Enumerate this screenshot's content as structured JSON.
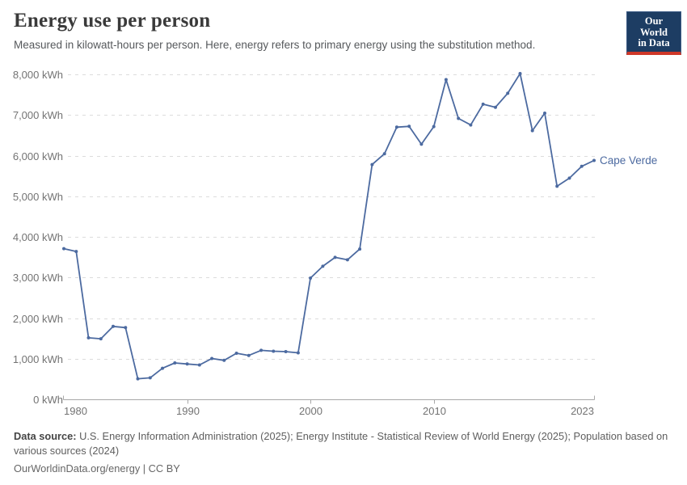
{
  "header": {
    "title": "Energy use per person",
    "subtitle": "Measured in kilowatt-hours per person. Here, energy refers to primary energy using the substitution method.",
    "logo": {
      "line1": "Our World",
      "line2": "in Data"
    }
  },
  "chart_data": {
    "type": "line",
    "title": "Energy use per person",
    "ylabel": "kilowatt-hours per person",
    "entity": "Cape Verde",
    "legend_position": "end-of-line-label",
    "grid": "horizontal-dashed",
    "xlim": [
      1980,
      2023
    ],
    "ylim": [
      0,
      8000
    ],
    "x": [
      1980,
      1981,
      1982,
      1983,
      1984,
      1985,
      1986,
      1987,
      1988,
      1989,
      1990,
      1991,
      1992,
      1993,
      1994,
      1995,
      1996,
      1997,
      1998,
      1999,
      2000,
      2001,
      2002,
      2003,
      2004,
      2005,
      2006,
      2007,
      2008,
      2009,
      2010,
      2011,
      2012,
      2013,
      2014,
      2015,
      2016,
      2017,
      2018,
      2019,
      2020,
      2021,
      2022,
      2023
    ],
    "values": [
      3710,
      3640,
      1515,
      1490,
      1795,
      1765,
      505,
      530,
      765,
      895,
      870,
      845,
      1005,
      960,
      1135,
      1080,
      1205,
      1185,
      1175,
      1145,
      2985,
      3275,
      3495,
      3435,
      3700,
      5780,
      6045,
      6700,
      6720,
      6280,
      6715,
      7870,
      6915,
      6755,
      7265,
      7190,
      7535,
      8020,
      6615,
      7045,
      5245,
      5445,
      5735,
      5880
    ],
    "y_ticks": [
      {
        "value": 0,
        "label": "0 kWh"
      },
      {
        "value": 1000,
        "label": "1,000 kWh"
      },
      {
        "value": 2000,
        "label": "2,000 kWh"
      },
      {
        "value": 3000,
        "label": "3,000 kWh"
      },
      {
        "value": 4000,
        "label": "4,000 kWh"
      },
      {
        "value": 5000,
        "label": "5,000 kWh"
      },
      {
        "value": 6000,
        "label": "6,000 kWh"
      },
      {
        "value": 7000,
        "label": "7,000 kWh"
      },
      {
        "value": 8000,
        "label": "8,000 kWh"
      }
    ],
    "x_ticks": [
      {
        "value": 1980,
        "label": "1980"
      },
      {
        "value": 1990,
        "label": "1990"
      },
      {
        "value": 2000,
        "label": "2000"
      },
      {
        "value": 2010,
        "label": "2010"
      },
      {
        "value": 2023,
        "label": "2023"
      }
    ]
  },
  "footer": {
    "source_label": "Data source:",
    "source_text": "U.S. Energy Information Administration (2025); Energy Institute - Statistical Review of World Energy (2025); Population based on various sources (2024)",
    "license": "OurWorldinData.org/energy | CC BY"
  },
  "colors": {
    "line": "#4c6aa0",
    "gridline": "#dcdcdc",
    "axis": "#a8a8a8",
    "tick_label": "#737373",
    "logo_bg": "#1d3d63",
    "logo_red": "#cf3829"
  }
}
